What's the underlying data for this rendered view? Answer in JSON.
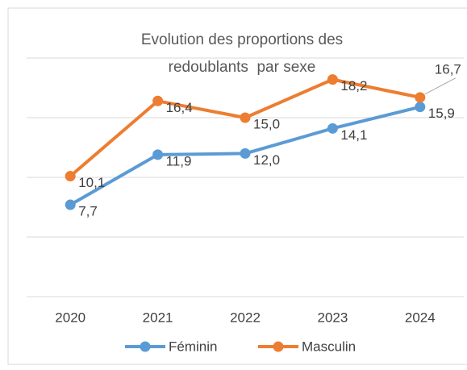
{
  "chart_data": {
    "type": "line",
    "title": [
      "Evolution des proportions des",
      "redoublants  par sexe"
    ],
    "categories": [
      "2020",
      "2021",
      "2022",
      "2023",
      "2024"
    ],
    "series": [
      {
        "name": "Féminin",
        "color": "#5b9bd5",
        "values": [
          7.7,
          11.9,
          12.0,
          14.1,
          15.9
        ],
        "value_labels": [
          "7,7",
          "11,9",
          "12,0",
          "14,1",
          "15,9"
        ]
      },
      {
        "name": "Masculin",
        "color": "#ed7d31",
        "values": [
          10.1,
          16.4,
          15.0,
          18.2,
          16.7
        ],
        "value_labels": [
          "10,1",
          "16,4",
          "15,0",
          "18,2",
          "16,7"
        ]
      }
    ],
    "ylim": [
      0,
      20
    ],
    "yticks": [
      0,
      5,
      10,
      15,
      20
    ],
    "grid": true,
    "legend": "bottom"
  }
}
